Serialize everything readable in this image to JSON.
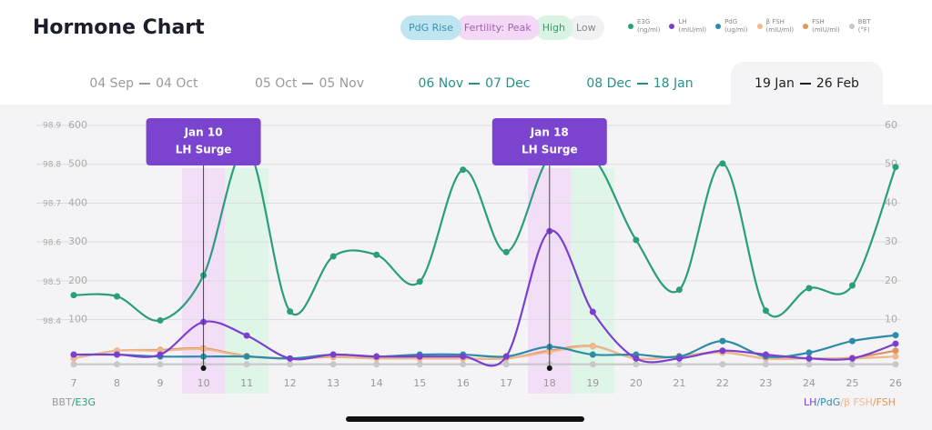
{
  "header": {
    "title": "Hormone Chart",
    "phases": [
      {
        "label": "PdG Rise",
        "color": "#bfe6f0",
        "text_color": "#3a8fb0"
      },
      {
        "label": "Fertility: Peak",
        "color": "#f4d9f6",
        "text_color": "#a35fb0"
      },
      {
        "label": "High",
        "color": "#d9f4e4",
        "text_color": "#3a9a6c"
      },
      {
        "label": "Low",
        "color": "#f1f1f3",
        "text_color": "#888888"
      }
    ]
  },
  "tabs": [
    {
      "from": "04 Sep",
      "to": "04 Oct",
      "color": "#9a9a9a"
    },
    {
      "from": "05 Oct",
      "to": "05 Nov",
      "color": "#9a9a9a"
    },
    {
      "from": "06 Nov",
      "to": "07 Dec",
      "color": "#2a8f8a"
    },
    {
      "from": "08 Dec",
      "to": "18 Jan",
      "color": "#2a8f8a"
    },
    {
      "from": "19 Jan",
      "to": "26 Feb",
      "color": "#1f1f1f",
      "active": true
    }
  ],
  "chart_data": {
    "type": "line",
    "categories": [
      "7",
      "8",
      "9",
      "10",
      "11",
      "12",
      "13",
      "14",
      "15",
      "16",
      "17",
      "18",
      "19",
      "20",
      "21",
      "22",
      "23",
      "24",
      "25",
      "26"
    ],
    "ylim": [
      -25,
      600
    ],
    "yticks": [
      100,
      200,
      300,
      400,
      500,
      600
    ],
    "y2lim": [
      -2.5,
      60
    ],
    "y2ticks": [
      10,
      20,
      30,
      40,
      50,
      60
    ],
    "y3lim": [
      98.28,
      98.9
    ],
    "y3ticks": [
      98.4,
      98.5,
      98.6,
      98.7,
      98.8,
      98.9
    ],
    "grid": true,
    "series": [
      {
        "name": "E3G",
        "unit": "(ng/ml)",
        "color": "#2a9d7c",
        "axis": "y",
        "values": [
          163,
          160,
          98,
          214,
          540,
          121,
          263,
          267,
          198,
          486,
          274,
          520,
          518,
          305,
          177,
          502,
          123,
          181,
          188,
          493
        ]
      },
      {
        "name": "LH",
        "unit": "(mIU/ml)",
        "color": "#7b3fd0",
        "axis": "y2",
        "values": [
          1,
          1,
          1,
          9.4,
          5.9,
          0,
          1,
          0.5,
          0.5,
          0.5,
          0.5,
          32.8,
          12,
          0,
          0,
          2,
          1,
          0,
          0,
          3.8
        ]
      },
      {
        "name": "PdG",
        "unit": "(ug/ml)",
        "color": "#2c8ca8",
        "axis": "y2",
        "values": [
          1,
          1,
          0.5,
          0.5,
          0.5,
          0,
          1,
          0.5,
          1,
          1,
          0.5,
          3,
          1,
          1,
          0.5,
          4.5,
          0.5,
          1.5,
          4.5,
          6
        ]
      },
      {
        "name": "β FSH",
        "unit": "(mIU/ml)",
        "color": "#f0b890",
        "axis": "y2",
        "values": [
          0,
          2,
          2,
          2.4,
          0.5,
          0,
          0.5,
          0,
          0,
          0,
          0,
          1.7,
          3.1,
          0,
          0.5,
          1.5,
          0,
          0,
          0,
          0.5
        ]
      },
      {
        "name": "FSH",
        "unit": "(mIU/ml)",
        "color": "#e0955a",
        "axis": "y2",
        "values": [
          0,
          2,
          2.2,
          2.6,
          0.6,
          0,
          0.4,
          0,
          0,
          0,
          0,
          2,
          3.2,
          0,
          0.6,
          1.6,
          0,
          0,
          0.2,
          2
        ]
      },
      {
        "name": "BBT",
        "unit": "(°F)",
        "color": "#c8c8cc",
        "axis": "y3",
        "values": [
          98.29,
          98.29,
          98.29,
          98.29,
          98.29,
          98.29,
          98.29,
          98.29,
          98.29,
          98.29,
          98.29,
          98.29,
          98.29,
          98.29,
          98.29,
          98.29,
          98.29,
          98.29,
          98.29,
          98.29
        ]
      }
    ],
    "bands": [
      {
        "x": "10",
        "color": "#f3def7"
      },
      {
        "x": "11",
        "color": "#dff5e8"
      },
      {
        "x": "18",
        "color": "#f3def7"
      },
      {
        "x": "19",
        "color": "#dff5e8"
      }
    ],
    "annotations": [
      {
        "x": "10",
        "date": "Jan 10",
        "text": "LH Surge"
      },
      {
        "x": "18",
        "date": "Jan 18",
        "text": "LH Surge"
      }
    ],
    "left_label": [
      {
        "text": "BBT",
        "color": "#9a9a9a"
      },
      {
        "text": "/E3G",
        "color": "#2a9d7c"
      }
    ],
    "right_label": [
      {
        "text": "LH",
        "color": "#7b3fd0"
      },
      {
        "text": "/PdG",
        "color": "#2c8ca8"
      },
      {
        "text": "/β FSH",
        "color": "#f0b890"
      },
      {
        "text": "/FSH",
        "color": "#e0955a"
      }
    ]
  }
}
